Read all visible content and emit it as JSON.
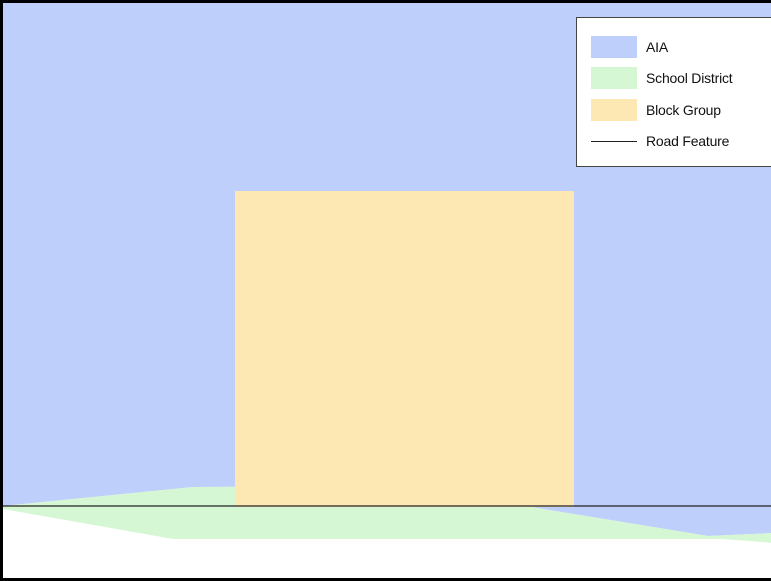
{
  "map": {
    "layers": [
      {
        "id": "aia",
        "label": "AIA",
        "color": "#bfcffb",
        "kind": "polygon"
      },
      {
        "id": "school-district",
        "label": "School District",
        "color": "#d6f7d3",
        "kind": "polygon"
      },
      {
        "id": "block-group",
        "label": "Block Group",
        "color": "#fde7b3",
        "kind": "polygon"
      },
      {
        "id": "road-feature",
        "label": "Road Feature",
        "color": "#222222",
        "kind": "line"
      }
    ]
  },
  "legend": {
    "items": [
      {
        "label": "AIA",
        "color": "#bfcffb",
        "type": "fill"
      },
      {
        "label": "School District",
        "color": "#d6f7d3",
        "type": "fill"
      },
      {
        "label": "Block Group",
        "color": "#fde7b3",
        "type": "fill"
      },
      {
        "label": "Road Feature",
        "color": "#222222",
        "type": "line"
      }
    ]
  }
}
